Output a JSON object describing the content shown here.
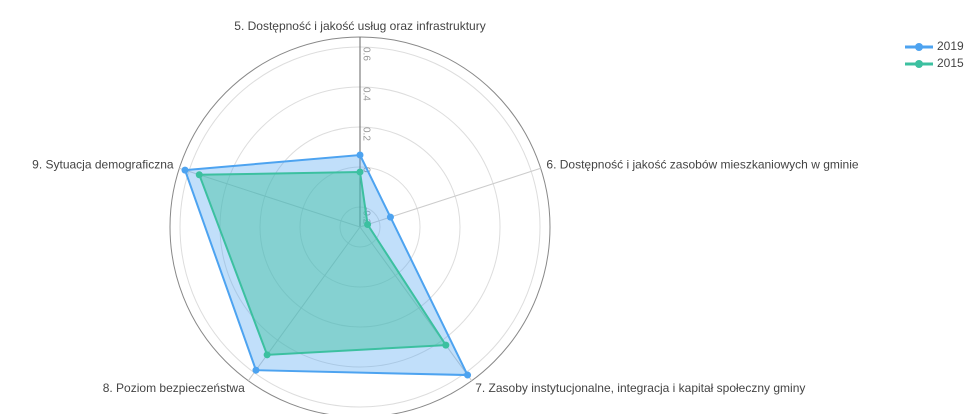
{
  "chart_data": {
    "type": "radar",
    "categories": [
      "5. Dostępność i jakość usług oraz infrastruktury",
      "6. Dostępność i jakość zasobów mieszkaniowych w gminie",
      "7. Zasoby instytucjonalne, integracja i kapitał społeczny gminy",
      "8. Poziom bezpieczeństwa",
      "9. Sytuacja demograficzna"
    ],
    "series": [
      {
        "name": "2019",
        "color": "#4da3f0",
        "values": [
          0.06,
          -0.14,
          0.615,
          0.585,
          0.62
        ]
      },
      {
        "name": "2015",
        "color": "#3cc0a0",
        "values": [
          -0.025,
          -0.26,
          0.43,
          0.49,
          0.545
        ]
      }
    ],
    "ylim": [
      -0.3,
      0.65
    ],
    "yticks": [
      -0.2,
      0,
      0.2,
      0.4,
      0.6
    ],
    "grid": true,
    "legend": "top-right"
  }
}
